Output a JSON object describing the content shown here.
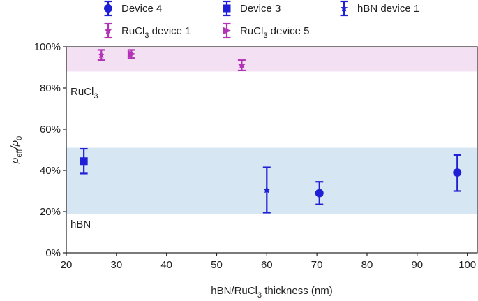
{
  "chart_data": {
    "type": "scatter",
    "xlabel": {
      "pre": "hBN/RuCl",
      "sub": "3",
      "post": " thickness (nm)"
    },
    "ylabel": {
      "rho": "ρ",
      "sub1": "eff",
      "slash": "/ρ",
      "sub2": "0"
    },
    "xlim": [
      20,
      102
    ],
    "ylim": [
      0,
      100
    ],
    "x_ticks": [
      "20",
      "30",
      "40",
      "50",
      "60",
      "70",
      "80",
      "90",
      "100"
    ],
    "y_ticks": [
      "0%",
      "20%",
      "40%",
      "60%",
      "80%",
      "100%"
    ],
    "grid": false,
    "legend_position": "top",
    "colors": {
      "blue": "#1f1fd6",
      "magenta": "#b233b5",
      "ruBand": "#f3e0f3",
      "hbnBand": "#d6e6f3"
    },
    "bands": [
      {
        "label": {
          "pre": "RuCl",
          "sub": "3"
        },
        "ymin": 88,
        "ymax": 100,
        "color": "ruBand"
      },
      {
        "label": {
          "pre": "hBN",
          "sub": ""
        },
        "ymin": 19,
        "ymax": 51,
        "color": "hbnBand"
      }
    ],
    "series": [
      {
        "name": {
          "pre": "Device 4",
          "sub": "",
          "post": ""
        },
        "marker": "circle",
        "color": "blue",
        "points": [
          {
            "x": 70.5,
            "y": 29,
            "err_low": 23.5,
            "err_high": 34.5
          },
          {
            "x": 98,
            "y": 39,
            "err_low": 30,
            "err_high": 47.5
          }
        ]
      },
      {
        "name": {
          "pre": "Device 3",
          "sub": "",
          "post": ""
        },
        "marker": "square",
        "color": "blue",
        "points": [
          {
            "x": 23.5,
            "y": 44.5,
            "err_low": 38.5,
            "err_high": 50.5
          }
        ]
      },
      {
        "name": {
          "pre": "hBN device 1",
          "sub": "",
          "post": ""
        },
        "marker": "star",
        "color": "blue",
        "points": [
          {
            "x": 60,
            "y": 30.5,
            "err_low": 19.5,
            "err_high": 41.5
          }
        ]
      },
      {
        "name": {
          "pre": "RuCl",
          "sub": "3",
          "post": " device 1"
        },
        "marker": "star",
        "color": "magenta",
        "points": [
          {
            "x": 27,
            "y": 96,
            "err_low": 93.5,
            "err_high": 98.5
          },
          {
            "x": 55,
            "y": 91,
            "err_low": 88.5,
            "err_high": 93.5
          }
        ]
      },
      {
        "name": {
          "pre": "RuCl",
          "sub": "3",
          "post": " device 5"
        },
        "marker": "triangle-right",
        "color": "magenta",
        "points": [
          {
            "x": 33,
            "y": 96.5,
            "err_low": 94.5,
            "err_high": 98.5
          }
        ]
      }
    ]
  }
}
